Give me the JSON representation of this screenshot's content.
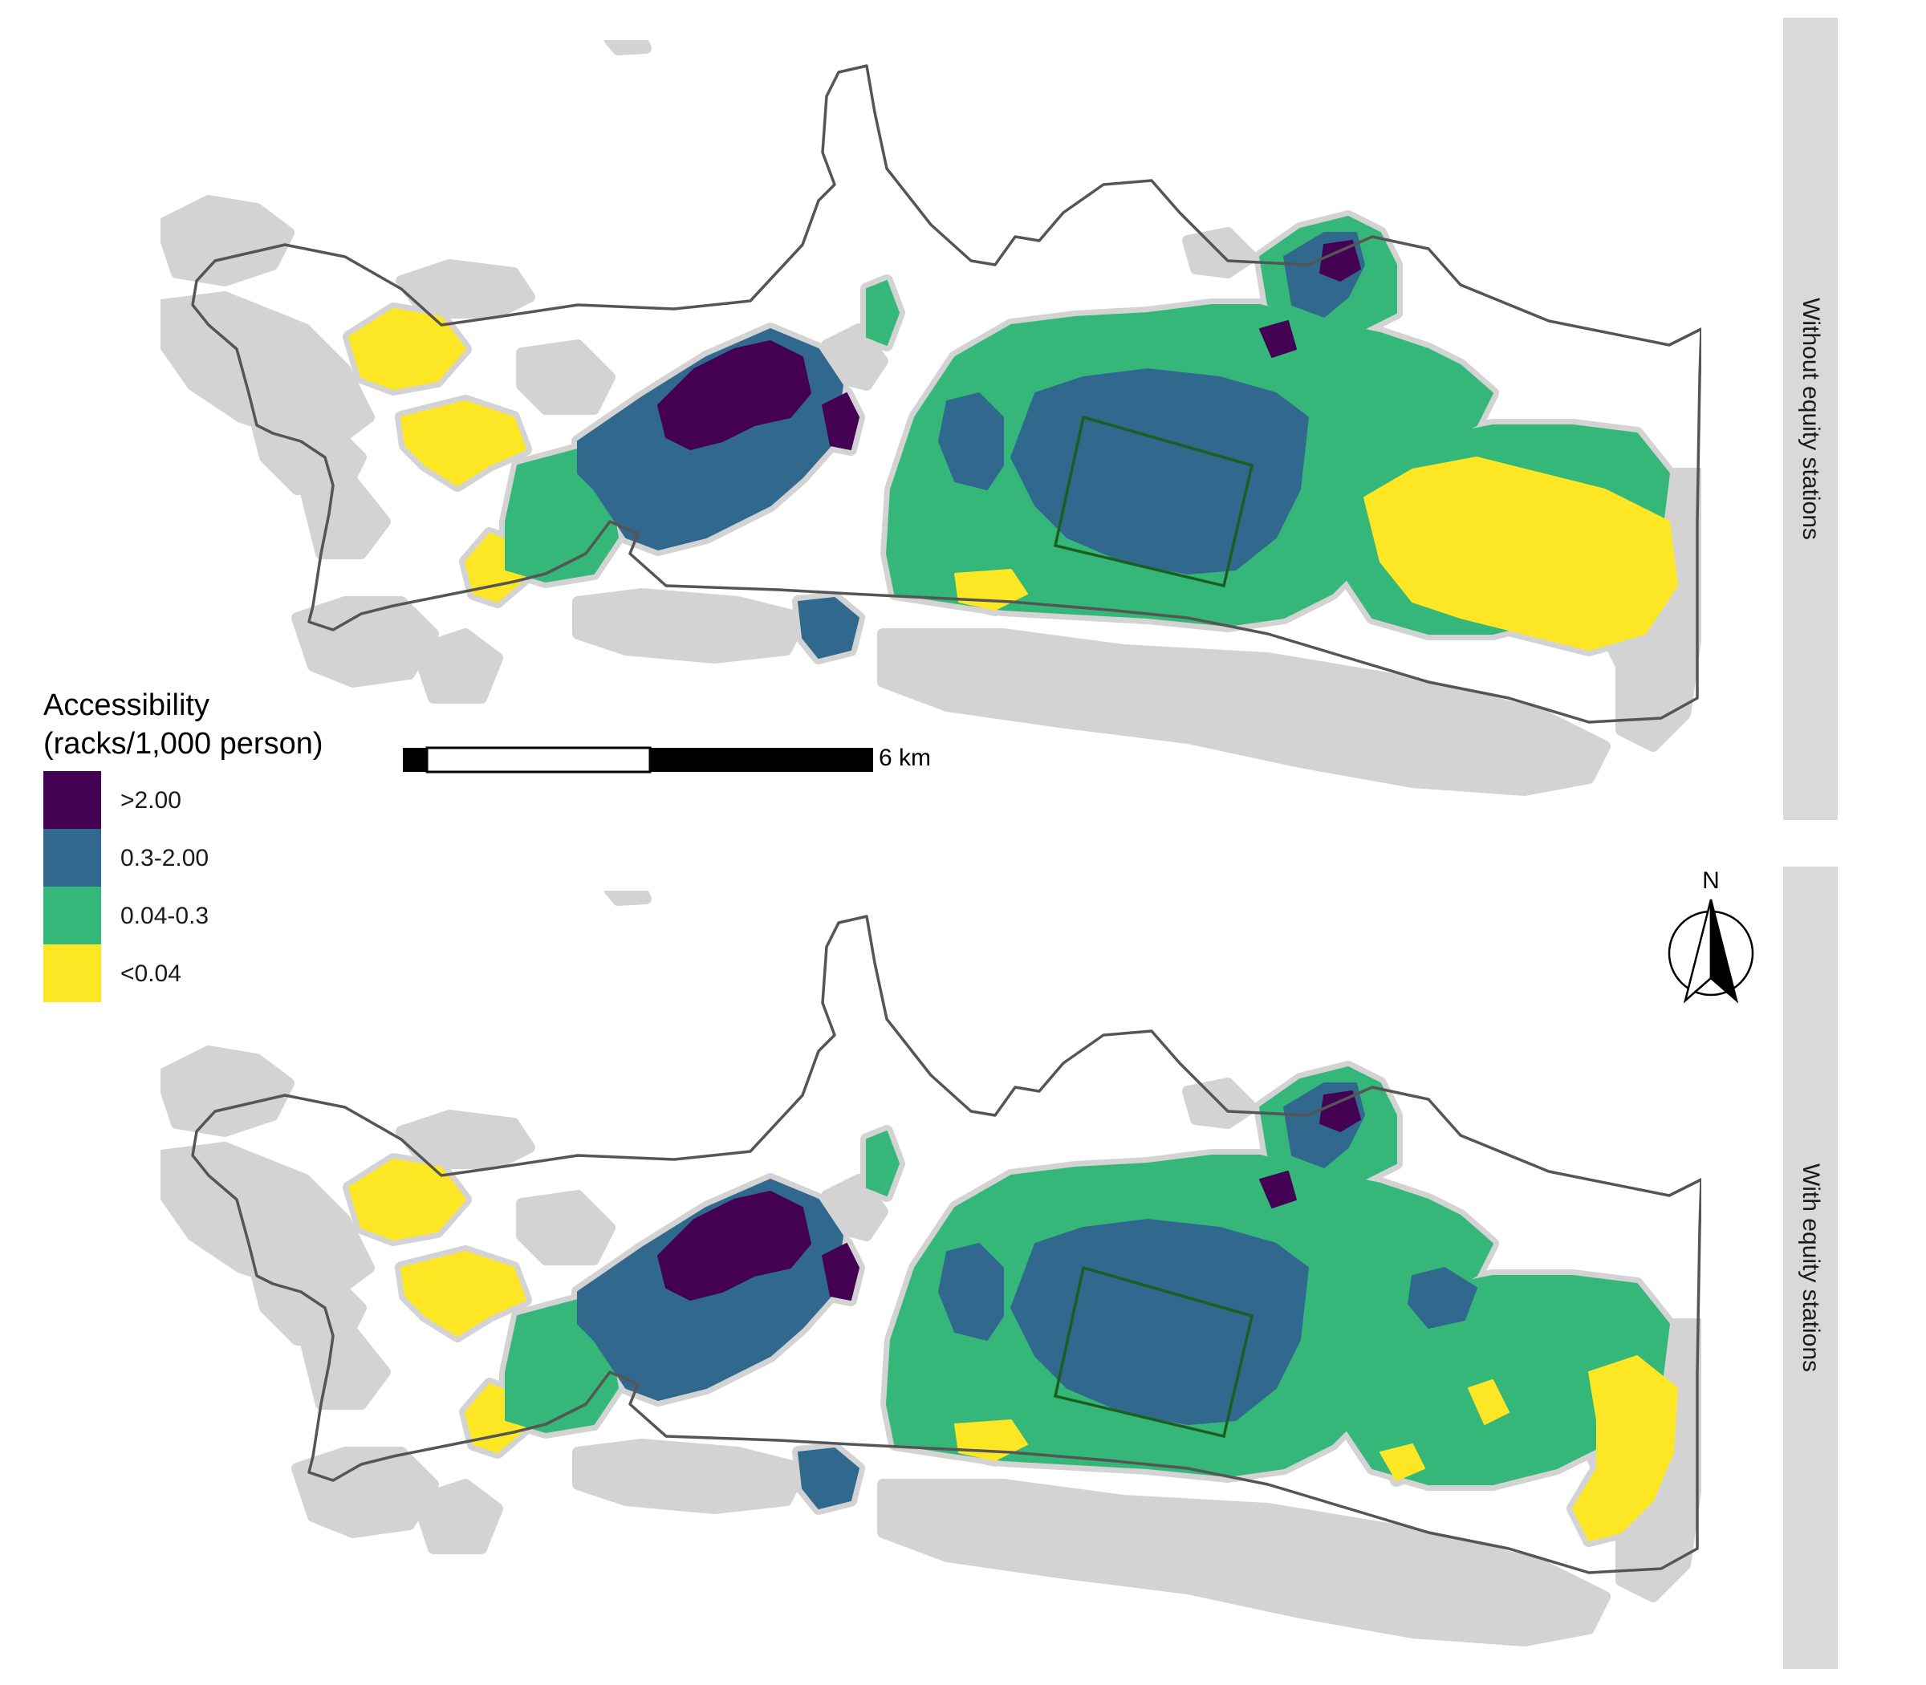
{
  "panels": [
    {
      "label": "Without equity stations",
      "scenario": "without"
    },
    {
      "label": "With equity stations",
      "scenario": "with"
    }
  ],
  "legend": {
    "title_line1": "Accessibility",
    "title_line2": "(racks/1,000 person)",
    "classes": [
      {
        "label": ">2.00",
        "color": "#440154"
      },
      {
        "label": "0.3-2.00",
        "color": "#31688e"
      },
      {
        "label": "0.04-0.3",
        "color": "#35b779"
      },
      {
        "label": "<0.04",
        "color": "#fde725"
      }
    ],
    "outside_color": "#d3d3d3"
  },
  "scalebar": {
    "label": "6 km"
  },
  "north_arrow": {
    "label": "N"
  },
  "colors": {
    "boundary": "#555555",
    "highlight_box": "#1b5e20",
    "strip": "#d9d9d9"
  }
}
